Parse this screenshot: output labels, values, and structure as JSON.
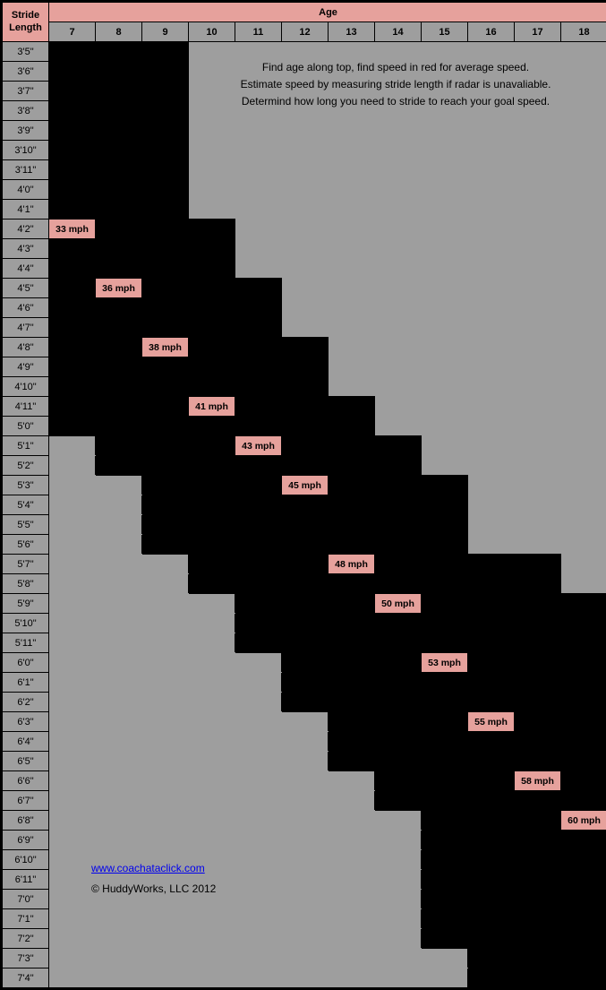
{
  "header": {
    "stride_length_label": "Stride\nLength",
    "age_label": "Age",
    "ages": [
      "7",
      "8",
      "9",
      "10",
      "11",
      "12",
      "13",
      "14",
      "15",
      "16",
      "17",
      "18"
    ]
  },
  "instructions": {
    "line1": "Find age along top, find speed in red for average speed.",
    "line2": "Estimate speed by measuring stride length if radar is unavaliable.",
    "line3": "Determind how long you need to stride to reach your goal speed."
  },
  "footer": {
    "link_text": "www.coachataclick.com",
    "copyright": "© HuddyWorks, LLC 2012"
  },
  "stride_labels": [
    "3'5\"",
    "3'6\"",
    "3'7\"",
    "3'8\"",
    "3'9\"",
    "3'10\"",
    "3'11\"",
    "4'0\"",
    "4'1\"",
    "4'2\"",
    "4'3\"",
    "4'4\"",
    "4'5\"",
    "4'6\"",
    "4'7\"",
    "4'8\"",
    "4'9\"",
    "4'10\"",
    "4'11\"",
    "5'0\"",
    "5'1\"",
    "5'2\"",
    "5'3\"",
    "5'4\"",
    "5'5\"",
    "5'6\"",
    "5'7\"",
    "5'8\"",
    "5'9\"",
    "5'10\"",
    "5'11\"",
    "6'0\"",
    "6'1\"",
    "6'2\"",
    "6'3\"",
    "6'4\"",
    "6'5\"",
    "6'6\"",
    "6'7\"",
    "6'8\"",
    "6'9\"",
    "6'10\"",
    "6'11\"",
    "7'0\"",
    "7'1\"",
    "7'2\"",
    "7'3\"",
    "7'4\""
  ],
  "highlights": {
    "9": {
      "0": "33 mph"
    },
    "12": {
      "1": "36 mph"
    },
    "15": {
      "2": "38 mph"
    },
    "18": {
      "3": "41 mph"
    },
    "20": {
      "4": "43 mph"
    },
    "22": {
      "5": "45 mph"
    },
    "26": {
      "6": "48 mph"
    },
    "28": {
      "7": "50 mph"
    },
    "31": {
      "8": "53 mph"
    },
    "34": {
      "9": "55 mph"
    },
    "37": {
      "10": "58 mph"
    },
    "39": {
      "11": "60 mph"
    }
  },
  "row_ranges": [
    [
      0,
      2
    ],
    [
      0,
      2
    ],
    [
      0,
      2
    ],
    [
      0,
      2
    ],
    [
      0,
      2
    ],
    [
      0,
      2
    ],
    [
      0,
      2
    ],
    [
      0,
      2
    ],
    [
      0,
      2
    ],
    [
      0,
      3
    ],
    [
      0,
      3
    ],
    [
      0,
      3
    ],
    [
      0,
      4
    ],
    [
      0,
      4
    ],
    [
      0,
      4
    ],
    [
      0,
      5
    ],
    [
      0,
      5
    ],
    [
      0,
      5
    ],
    [
      0,
      6
    ],
    [
      0,
      6
    ],
    [
      1,
      7
    ],
    [
      1,
      7
    ],
    [
      2,
      8
    ],
    [
      2,
      8
    ],
    [
      2,
      8
    ],
    [
      2,
      8
    ],
    [
      3,
      10
    ],
    [
      3,
      10
    ],
    [
      4,
      11
    ],
    [
      4,
      11
    ],
    [
      4,
      11
    ],
    [
      5,
      11
    ],
    [
      5,
      11
    ],
    [
      5,
      11
    ],
    [
      6,
      11
    ],
    [
      6,
      11
    ],
    [
      6,
      11
    ],
    [
      7,
      11
    ],
    [
      7,
      11
    ],
    [
      8,
      11
    ],
    [
      8,
      11
    ],
    [
      8,
      11
    ],
    [
      8,
      11
    ],
    [
      8,
      11
    ],
    [
      8,
      11
    ],
    [
      8,
      11
    ],
    [
      9,
      11
    ],
    [
      9,
      11
    ]
  ],
  "colors": {
    "salmon": "#e6a19c",
    "gray": "#9e9e9e",
    "black": "#000000"
  }
}
